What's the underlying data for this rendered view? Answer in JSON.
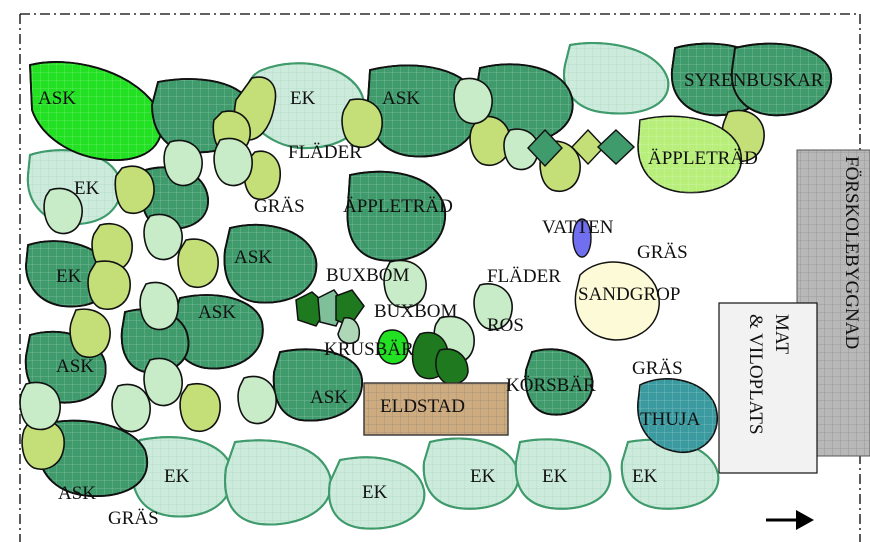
{
  "colors": {
    "tree_dark": "#3f9a6c",
    "tree_pale": "#cdebdc",
    "bright_green": "#22e022",
    "shrub_light": "#c8ecc8",
    "grass_yellow": "#c4df77",
    "apple_lime": "#b7ef7a",
    "buxbom": "#1f7a1f",
    "water": "#6f6ff0",
    "sandpit": "#fdfbd7",
    "fire": "#cfac7f",
    "thuja": "#3b9aa0",
    "building": "#b8b8b8",
    "mat_box": "#f2f2f2"
  },
  "labels": {
    "ask_1": "ASK",
    "ek_1": "EK",
    "ask_2": "ASK",
    "syrenbuskar": "SYRENBUSKAR",
    "flader_1": "FLÄDER",
    "ek_2": "EK",
    "appletrad_1": "ÄPPLETRÄD",
    "gras_1": "GRÄS",
    "appletrad_2": "ÄPPLETRÄD",
    "vatten": "VATTEN",
    "gras_2": "GRÄS",
    "ek_3": "EK",
    "ask_3": "ASK",
    "buxbom_1": "BUXBOM",
    "flader_2": "FLÄDER",
    "sandgrop": "SANDGROP",
    "ask_4": "ASK",
    "buxbom_2": "BUXBOM",
    "ros": "ROS",
    "krusbar": "KRUSBÄR",
    "ask_5": "ASK",
    "gras_3": "GRÄS",
    "korsbar": "KÖRSBÄR",
    "ask_6": "ASK",
    "eldstad": "ELDSTAD",
    "thuja": "THUJA",
    "ek_4": "EK",
    "ek_5": "EK",
    "ek_6": "EK",
    "ek_7": "EK",
    "ek_8": "EK",
    "ask_7": "ASK",
    "gras_4": "GRÄS",
    "mat_line1": "MAT",
    "mat_line2": "& VILOPLATS",
    "forskolebyggnad": "FÖRSKOLEBYGGNAD"
  },
  "icons": {
    "direction": "right-arrow-icon"
  }
}
